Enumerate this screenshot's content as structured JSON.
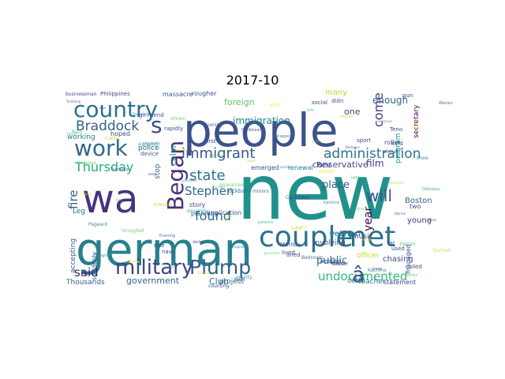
{
  "title": "2017-10",
  "words": [
    {
      "text": "new",
      "color": "#21918c"
    },
    {
      "text": "wa",
      "color": "#46337e"
    },
    {
      "text": "people",
      "color": "#3b528b"
    },
    {
      "text": "german",
      "color": "#27808e"
    },
    {
      "text": "couple",
      "color": "#2c728e"
    },
    {
      "text": "met",
      "color": "#2c728e"
    },
    {
      "text": "country",
      "color": "#2c728e"
    },
    {
      "text": "work",
      "color": "#31688e"
    },
    {
      "text": "military",
      "color": "#414487"
    },
    {
      "text": "Plump",
      "color": "#355f8d"
    },
    {
      "text": "Began",
      "color": "#472f7d"
    },
    {
      "text": "s",
      "color": "#3e4a89"
    },
    {
      "text": "administration",
      "color": "#2a768e"
    },
    {
      "text": "immigrant",
      "color": "#38598c"
    },
    {
      "text": "Braddock",
      "color": "#355f8d"
    },
    {
      "text": "Thursday",
      "color": "#27ad81"
    },
    {
      "text": "state",
      "color": "#2c728e"
    },
    {
      "text": "Stephen",
      "color": "#31688e"
    },
    {
      "text": "found",
      "color": "#2e6e8e"
    },
    {
      "text": "undocumented",
      "color": "#35b779"
    },
    {
      "text": "â",
      "color": "#3b528b"
    },
    {
      "text": "will",
      "color": "#3b528b"
    },
    {
      "text": "said",
      "color": "#481f70"
    },
    {
      "text": "fire",
      "color": "#365c8d"
    },
    {
      "text": "year",
      "color": "#440154"
    },
    {
      "text": "come",
      "color": "#443a83"
    },
    {
      "text": "place",
      "color": "#38598c"
    },
    {
      "text": "public",
      "color": "#2e6e8e"
    },
    {
      "text": "immigration",
      "color": "#26828e"
    },
    {
      "text": "foreign",
      "color": "#5ec962"
    },
    {
      "text": "enough",
      "color": "#31688e"
    },
    {
      "text": "color",
      "color": "#27808e"
    },
    {
      "text": "film",
      "color": "#46337e"
    },
    {
      "text": "government",
      "color": "#31688e"
    },
    {
      "text": "Club",
      "color": "#2e6e8e"
    },
    {
      "text": "conservative",
      "color": "#3e4a89"
    },
    {
      "text": "program",
      "color": "#1f988b"
    },
    {
      "text": "secretary",
      "color": "#440154"
    },
    {
      "text": "Boston",
      "color": "#31688e"
    },
    {
      "text": "veteran",
      "color": "#2a768e"
    },
    {
      "text": "many",
      "color": "#b5de2b"
    },
    {
      "text": "one",
      "color": "#404387"
    },
    {
      "text": "Rev",
      "color": "#3e4a89"
    },
    {
      "text": "Leg",
      "color": "#2e6e8e"
    },
    {
      "text": "accepting",
      "color": "#38598c"
    },
    {
      "text": "music",
      "color": "#3e4a89"
    },
    {
      "text": "officer",
      "color": "#b5de2b"
    },
    {
      "text": "chasing",
      "color": "#3e4a89"
    },
    {
      "text": "young",
      "color": "#46337e"
    },
    {
      "text": "two",
      "color": "#3b528b"
    },
    {
      "text": "project",
      "color": "#2e6e8e"
    },
    {
      "text": "teacher",
      "color": "#2a768e"
    },
    {
      "text": "Thousands",
      "color": "#355f8d"
    },
    {
      "text": "working",
      "color": "#27808e"
    },
    {
      "text": "police",
      "color": "#2e6e8e"
    },
    {
      "text": "stop",
      "color": "#31688e"
    },
    {
      "text": "emerged",
      "color": "#3b528b"
    },
    {
      "text": "renewal",
      "color": "#27808e"
    },
    {
      "text": "involving",
      "color": "#3b528b"
    },
    {
      "text": "story",
      "color": "#3e4a89"
    },
    {
      "text": "planning",
      "color": "#2e6e8e"
    },
    {
      "text": "application",
      "color": "#3b528b"
    },
    {
      "text": "kickball",
      "color": "#2e6e8e"
    },
    {
      "text": "suddenly",
      "color": "#3b528b"
    },
    {
      "text": "detail",
      "color": "#2e6e8e"
    },
    {
      "text": "statement",
      "color": "#3e4a89"
    },
    {
      "text": "died",
      "color": "#3b528b"
    },
    {
      "text": "managed",
      "color": "#3b528b"
    },
    {
      "text": "hoped",
      "color": "#3e4a89"
    },
    {
      "text": "massacre",
      "color": "#3b528b"
    },
    {
      "text": "rougher",
      "color": "#3b528b"
    },
    {
      "text": "social",
      "color": "#3e4a89"
    },
    {
      "text": "didn",
      "color": "#3b528b"
    },
    {
      "text": "Philippines",
      "color": "#3e4a89"
    },
    {
      "text": "roller",
      "color": "#3b528b"
    },
    {
      "text": "sport",
      "color": "#3e4a89"
    },
    {
      "text": "kind",
      "color": "#3b528b"
    },
    {
      "text": "businessman",
      "color": "#3e4a89"
    },
    {
      "text": "rapidly",
      "color": "#3b528b"
    },
    {
      "text": "first",
      "color": "#3e4a89"
    },
    {
      "text": "device",
      "color": "#3b528b"
    },
    {
      "text": "girlfriend",
      "color": "#3b528b"
    },
    {
      "text": "navy",
      "color": "#3e4a89"
    },
    {
      "text": "rule",
      "color": "#3b528b"
    },
    {
      "text": "far",
      "color": "#3b528b"
    },
    {
      "text": "used",
      "color": "#3b528b"
    },
    {
      "text": "aired",
      "color": "#3e4a89"
    },
    {
      "text": "lived",
      "color": "#3b528b"
    },
    {
      "text": "weapon",
      "color": "#3b528b"
    },
    {
      "text": "Marilou",
      "color": "#3e4a89"
    },
    {
      "text": "Teno",
      "color": "#3b528b"
    },
    {
      "text": "gun",
      "color": "#3e4a89"
    },
    {
      "text": "high",
      "color": "#3b528b"
    },
    {
      "text": "counting",
      "color": "#3e4a89"
    },
    {
      "text": "called",
      "color": "#3e4a89"
    }
  ]
}
